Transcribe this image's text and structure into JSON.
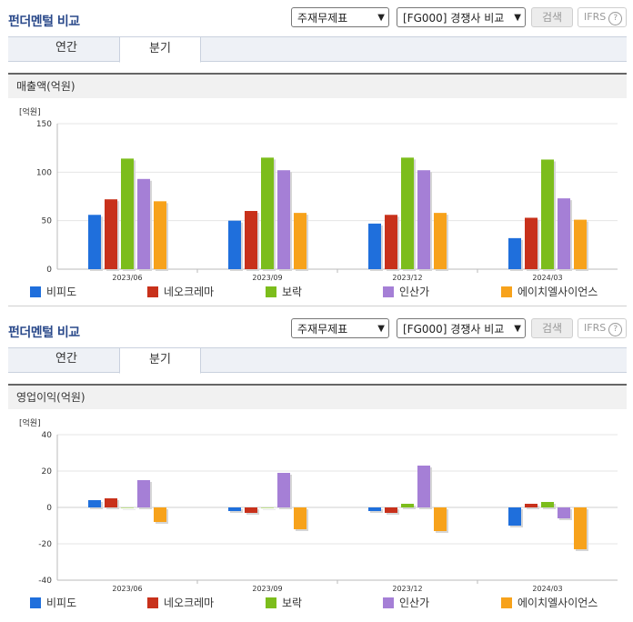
{
  "panels": [
    {
      "title": "펀더멘털 비교",
      "report_select": "주재무제표",
      "compare_select": "[FG000] 경쟁사 비교",
      "search_label": "검색",
      "ifrs_label": "IFRS",
      "help_label": "?",
      "tabs": [
        {
          "label": "연간"
        },
        {
          "label": "분기"
        }
      ],
      "active_tab": 1,
      "metric_title": "매출액(억원)",
      "unit_label": "[억원]"
    },
    {
      "title": "펀더멘털 비교",
      "report_select": "주재무제표",
      "compare_select": "[FG000] 경쟁사 비교",
      "search_label": "검색",
      "ifrs_label": "IFRS",
      "help_label": "?",
      "tabs": [
        {
          "label": "연간"
        },
        {
          "label": "분기"
        }
      ],
      "active_tab": 1,
      "metric_title": "영업이익(억원)",
      "unit_label": "[억원]"
    }
  ],
  "chart_data": [
    {
      "type": "bar",
      "title": "매출액(억원)",
      "ylabel": "[억원]",
      "categories": [
        "2023/06",
        "2023/09",
        "2023/12",
        "2024/03"
      ],
      "ylim": [
        0,
        150
      ],
      "yticks": [
        0,
        50,
        100,
        150
      ],
      "series": [
        {
          "name": "비피도",
          "color": "#1f6fdc",
          "values": [
            56,
            50,
            47,
            32
          ]
        },
        {
          "name": "네오크레마",
          "color": "#c8311b",
          "values": [
            72,
            60,
            56,
            53
          ]
        },
        {
          "name": "보락",
          "color": "#7cbd1c",
          "values": [
            114,
            115,
            115,
            113
          ]
        },
        {
          "name": "인산가",
          "color": "#a57fd6",
          "values": [
            93,
            102,
            102,
            73
          ]
        },
        {
          "name": "에이치엘사이언스",
          "color": "#f7a21b",
          "values": [
            70,
            58,
            58,
            51
          ]
        }
      ]
    },
    {
      "type": "bar",
      "title": "영업이익(억원)",
      "ylabel": "[억원]",
      "categories": [
        "2023/06",
        "2023/09",
        "2023/12",
        "2024/03"
      ],
      "ylim": [
        -40,
        40
      ],
      "yticks": [
        -40,
        -20,
        0,
        20,
        40
      ],
      "series": [
        {
          "name": "비피도",
          "color": "#1f6fdc",
          "values": [
            4,
            -2,
            -2,
            -10
          ]
        },
        {
          "name": "네오크레마",
          "color": "#c8311b",
          "values": [
            5,
            -3,
            -3,
            2
          ]
        },
        {
          "name": "보락",
          "color": "#7cbd1c",
          "values": [
            0,
            0,
            2,
            3
          ]
        },
        {
          "name": "인산가",
          "color": "#a57fd6",
          "values": [
            15,
            19,
            23,
            -6
          ]
        },
        {
          "name": "에이치엘사이언스",
          "color": "#f7a21b",
          "values": [
            -8,
            -12,
            -13,
            -23
          ]
        }
      ]
    }
  ]
}
